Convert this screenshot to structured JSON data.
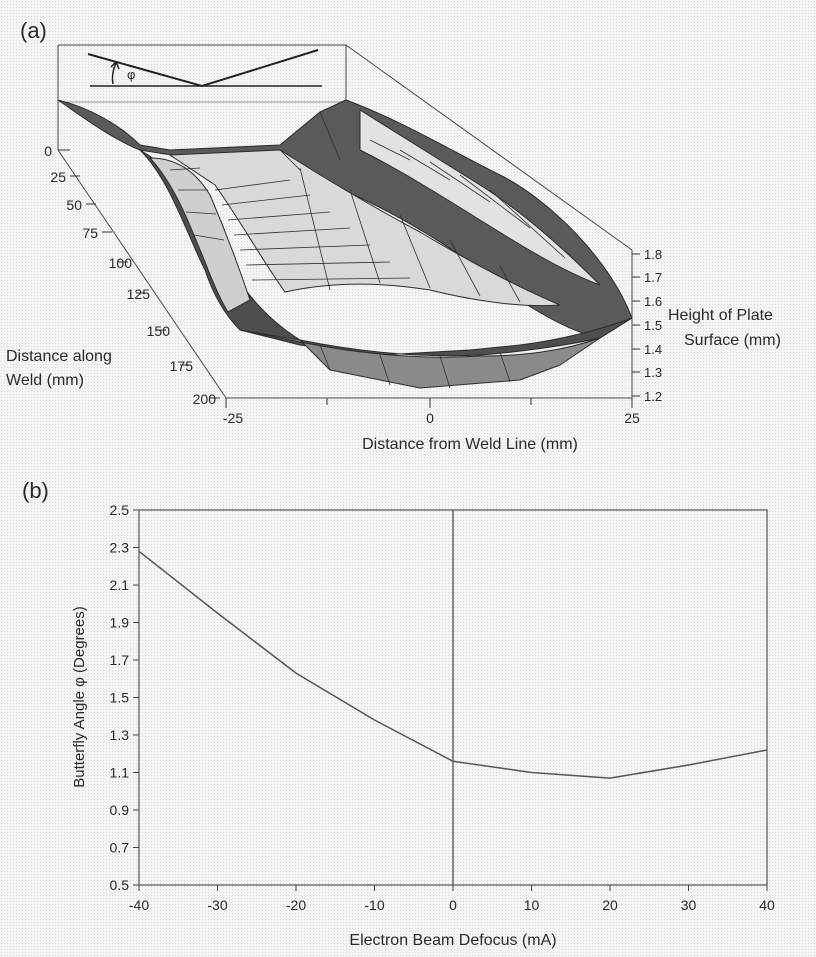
{
  "chart_data": [
    {
      "type": "surface",
      "panel_label": "(a)",
      "xlabel": "Distance from Weld Line (mm)",
      "ylabel_lines": [
        "Distance along",
        "Weld (mm)"
      ],
      "zlabel_lines": [
        "Height of Plate",
        "Surface (mm)"
      ],
      "x_ticks": [
        "-25",
        "0",
        "25"
      ],
      "y_ticks": [
        "0",
        "25",
        "50",
        "75",
        "100",
        "125",
        "150",
        "175",
        "200"
      ],
      "z_ticks": [
        "1.8",
        "1.7",
        "1.6",
        "1.5",
        "1.4",
        "1.3",
        "1.2"
      ],
      "xlim": [
        -25,
        25
      ],
      "ylim": [
        0,
        200
      ],
      "zlim": [
        1.2,
        1.8
      ],
      "inset_symbol": "φ"
    },
    {
      "type": "line",
      "panel_label": "(b)",
      "xlabel": "Electron Beam Defocus (mA)",
      "ylabel": "Butterfly Angle φ (Degrees)",
      "xlim": [
        -40,
        40
      ],
      "ylim": [
        0.5,
        2.5
      ],
      "x_ticks": [
        -40,
        -30,
        -20,
        -10,
        0,
        10,
        20,
        30,
        40
      ],
      "y_ticks": [
        0.5,
        0.7,
        0.9,
        1.1,
        1.3,
        1.5,
        1.7,
        1.9,
        2.1,
        2.3,
        2.5
      ],
      "y_tick_labels": [
        "0.5",
        "0.7",
        "0.9",
        "1.1",
        "1.3",
        "1.5",
        "1.7",
        "1.9",
        "2.1",
        "2.3",
        "2.5"
      ],
      "vertical_reference_line_x": 0,
      "series": [
        {
          "x": [
            -40,
            -30,
            -20,
            -10,
            0,
            10,
            20,
            30,
            40
          ],
          "y": [
            2.28,
            1.95,
            1.63,
            1.38,
            1.16,
            1.1,
            1.07,
            1.14,
            1.22
          ]
        }
      ]
    }
  ]
}
